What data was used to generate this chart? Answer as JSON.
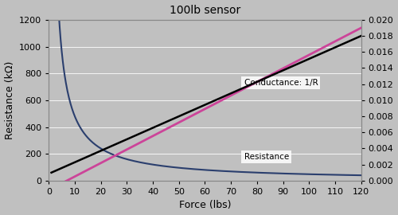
{
  "title": "100lb sensor",
  "xlabel": "Force (lbs)",
  "ylabel_left": "Resistance (kΩ)",
  "ylabel_right": "",
  "xlim": [
    0,
    120
  ],
  "ylim_left": [
    0,
    1200
  ],
  "ylim_right": [
    0.0,
    0.02
  ],
  "yticks_left": [
    0,
    200,
    400,
    600,
    800,
    1000,
    1200
  ],
  "yticks_right": [
    0.0,
    0.002,
    0.004,
    0.006,
    0.008,
    0.01,
    0.012,
    0.014,
    0.016,
    0.018,
    0.02
  ],
  "xticks": [
    0,
    10,
    20,
    30,
    40,
    50,
    60,
    70,
    80,
    90,
    100,
    110,
    120
  ],
  "conductance_label": "Conductance: 1/R",
  "resistance_label": "Resistance",
  "background_color": "#c0c0c0",
  "plot_bg_color": "#c0c0c0",
  "resistance_color": "#2b3f6e",
  "conductance_pink_color": "#cc4499",
  "conductance_black_color": "#000000",
  "title_fontsize": 10,
  "axis_label_fontsize": 9,
  "tick_fontsize": 8,
  "res_A": 4800,
  "cond_black_start": 0.001,
  "cond_black_end": 0.018,
  "cond_pink_start": -0.001,
  "cond_pink_end": 0.019
}
